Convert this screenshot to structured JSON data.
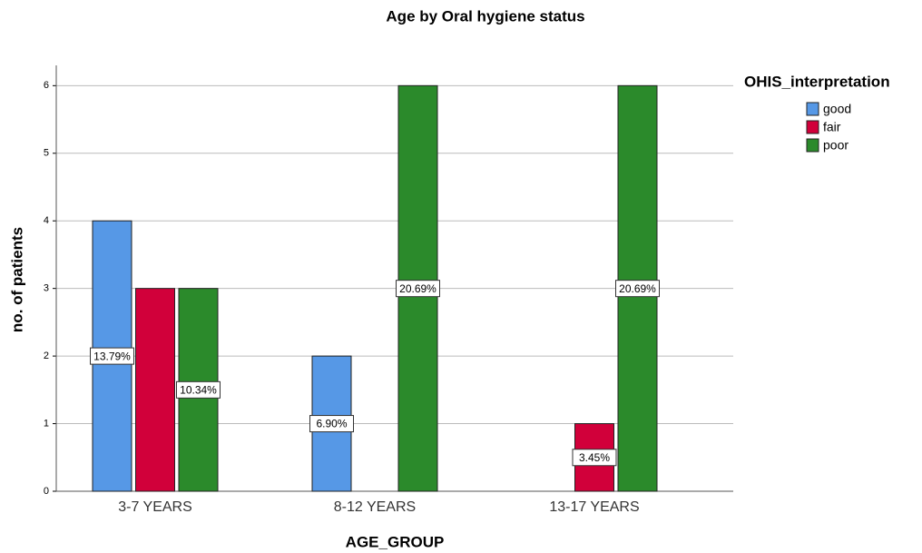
{
  "chart_data": {
    "type": "bar",
    "title": "Age by Oral hygiene status",
    "x_label": "AGE_GROUP",
    "y_label": "no. of patients",
    "categories": [
      "3-7 YEARS",
      "8-12 YEARS",
      "13-17 YEARS"
    ],
    "legend_title": "OHIS_interpretation",
    "legend": "right",
    "series": [
      {
        "name": "good",
        "color": "#5698e6",
        "values": [
          4,
          2,
          null
        ],
        "value_labels": [
          "13.79%",
          "6.90%",
          null
        ]
      },
      {
        "name": "fair",
        "color": "#d1003a",
        "values": [
          3,
          null,
          1
        ],
        "value_labels": [
          null,
          null,
          "3.45%"
        ]
      },
      {
        "name": "poor",
        "color": "#2b8a2b",
        "values": [
          3,
          6,
          6
        ],
        "value_labels": [
          "10.34%",
          "20.69%",
          "20.69%"
        ]
      }
    ],
    "ylim": [
      0,
      6.3
    ],
    "yticks": [
      0,
      1,
      2,
      3,
      4,
      5,
      6
    ],
    "grid": true
  }
}
